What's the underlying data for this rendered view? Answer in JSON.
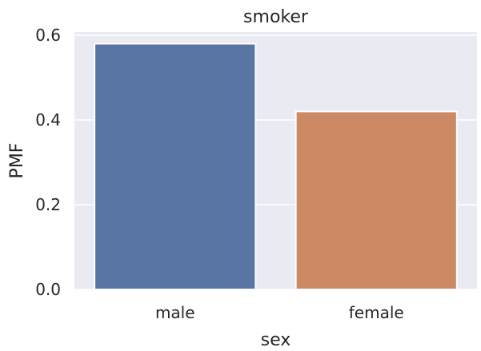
{
  "chart_data": {
    "type": "bar",
    "title": "smoker",
    "xlabel": "sex",
    "ylabel": "PMF",
    "categories": [
      "male",
      "female"
    ],
    "values": [
      0.58,
      0.42
    ],
    "colors": [
      "#5875a4",
      "#cc8963"
    ],
    "ylim": [
      0,
      0.6
    ],
    "yticks": [
      "0.0",
      "0.2",
      "0.4",
      "0.6"
    ],
    "ytick_values": [
      0,
      0.2,
      0.4,
      0.6
    ],
    "grid": true,
    "style": {
      "plot_background": "#eaeaf2",
      "grid_color": "#ffffff",
      "text_color": "#262626"
    }
  }
}
